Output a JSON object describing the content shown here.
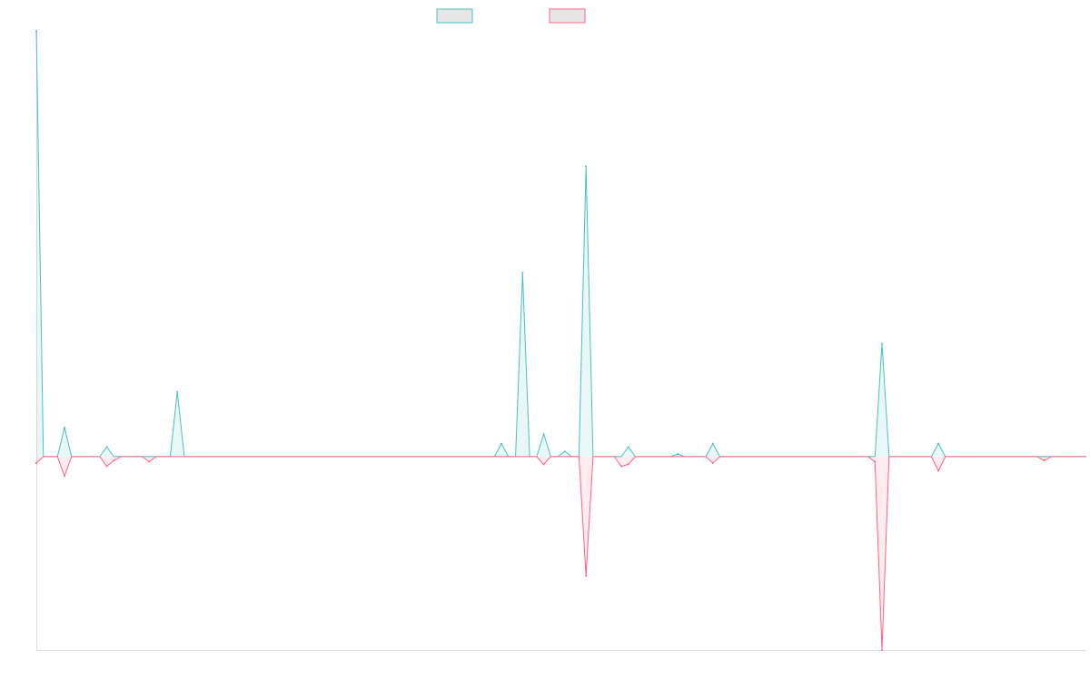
{
  "chart_data": {
    "type": "area",
    "title": "",
    "xlabel": "",
    "ylabel": "",
    "legend": {
      "position": "top-center",
      "show_labels": false
    },
    "grid": false,
    "x_count": 150,
    "ylim": [
      -30,
      66
    ],
    "series": [
      {
        "color": "#4bc0c0",
        "fill": "rgba(75,192,192,0.12)",
        "points": [
          [
            0,
            66
          ],
          [
            4,
            4.5
          ],
          [
            10,
            1.5
          ],
          [
            11,
            0
          ],
          [
            20,
            10
          ],
          [
            66,
            2
          ],
          [
            69,
            28.5
          ],
          [
            72,
            3.5
          ],
          [
            75,
            0.8
          ],
          [
            78,
            45
          ],
          [
            84,
            1.5
          ],
          [
            91,
            0.4
          ],
          [
            96,
            2
          ],
          [
            119,
            0
          ],
          [
            120,
            17.5
          ],
          [
            128,
            2
          ],
          [
            143,
            0
          ]
        ]
      },
      {
        "color": "#ff6384",
        "fill": "rgba(255,99,132,0.12)",
        "points": [
          [
            0,
            -1
          ],
          [
            4,
            -3
          ],
          [
            10,
            -1.5
          ],
          [
            11,
            -0.6
          ],
          [
            16,
            -0.8
          ],
          [
            72,
            -1.2
          ],
          [
            78,
            -18.5
          ],
          [
            83,
            -1.5
          ],
          [
            84,
            -1.2
          ],
          [
            96,
            -1
          ],
          [
            119,
            -0.8
          ],
          [
            120,
            -30
          ],
          [
            128,
            -2.2
          ],
          [
            143,
            -0.6
          ]
        ]
      }
    ]
  }
}
